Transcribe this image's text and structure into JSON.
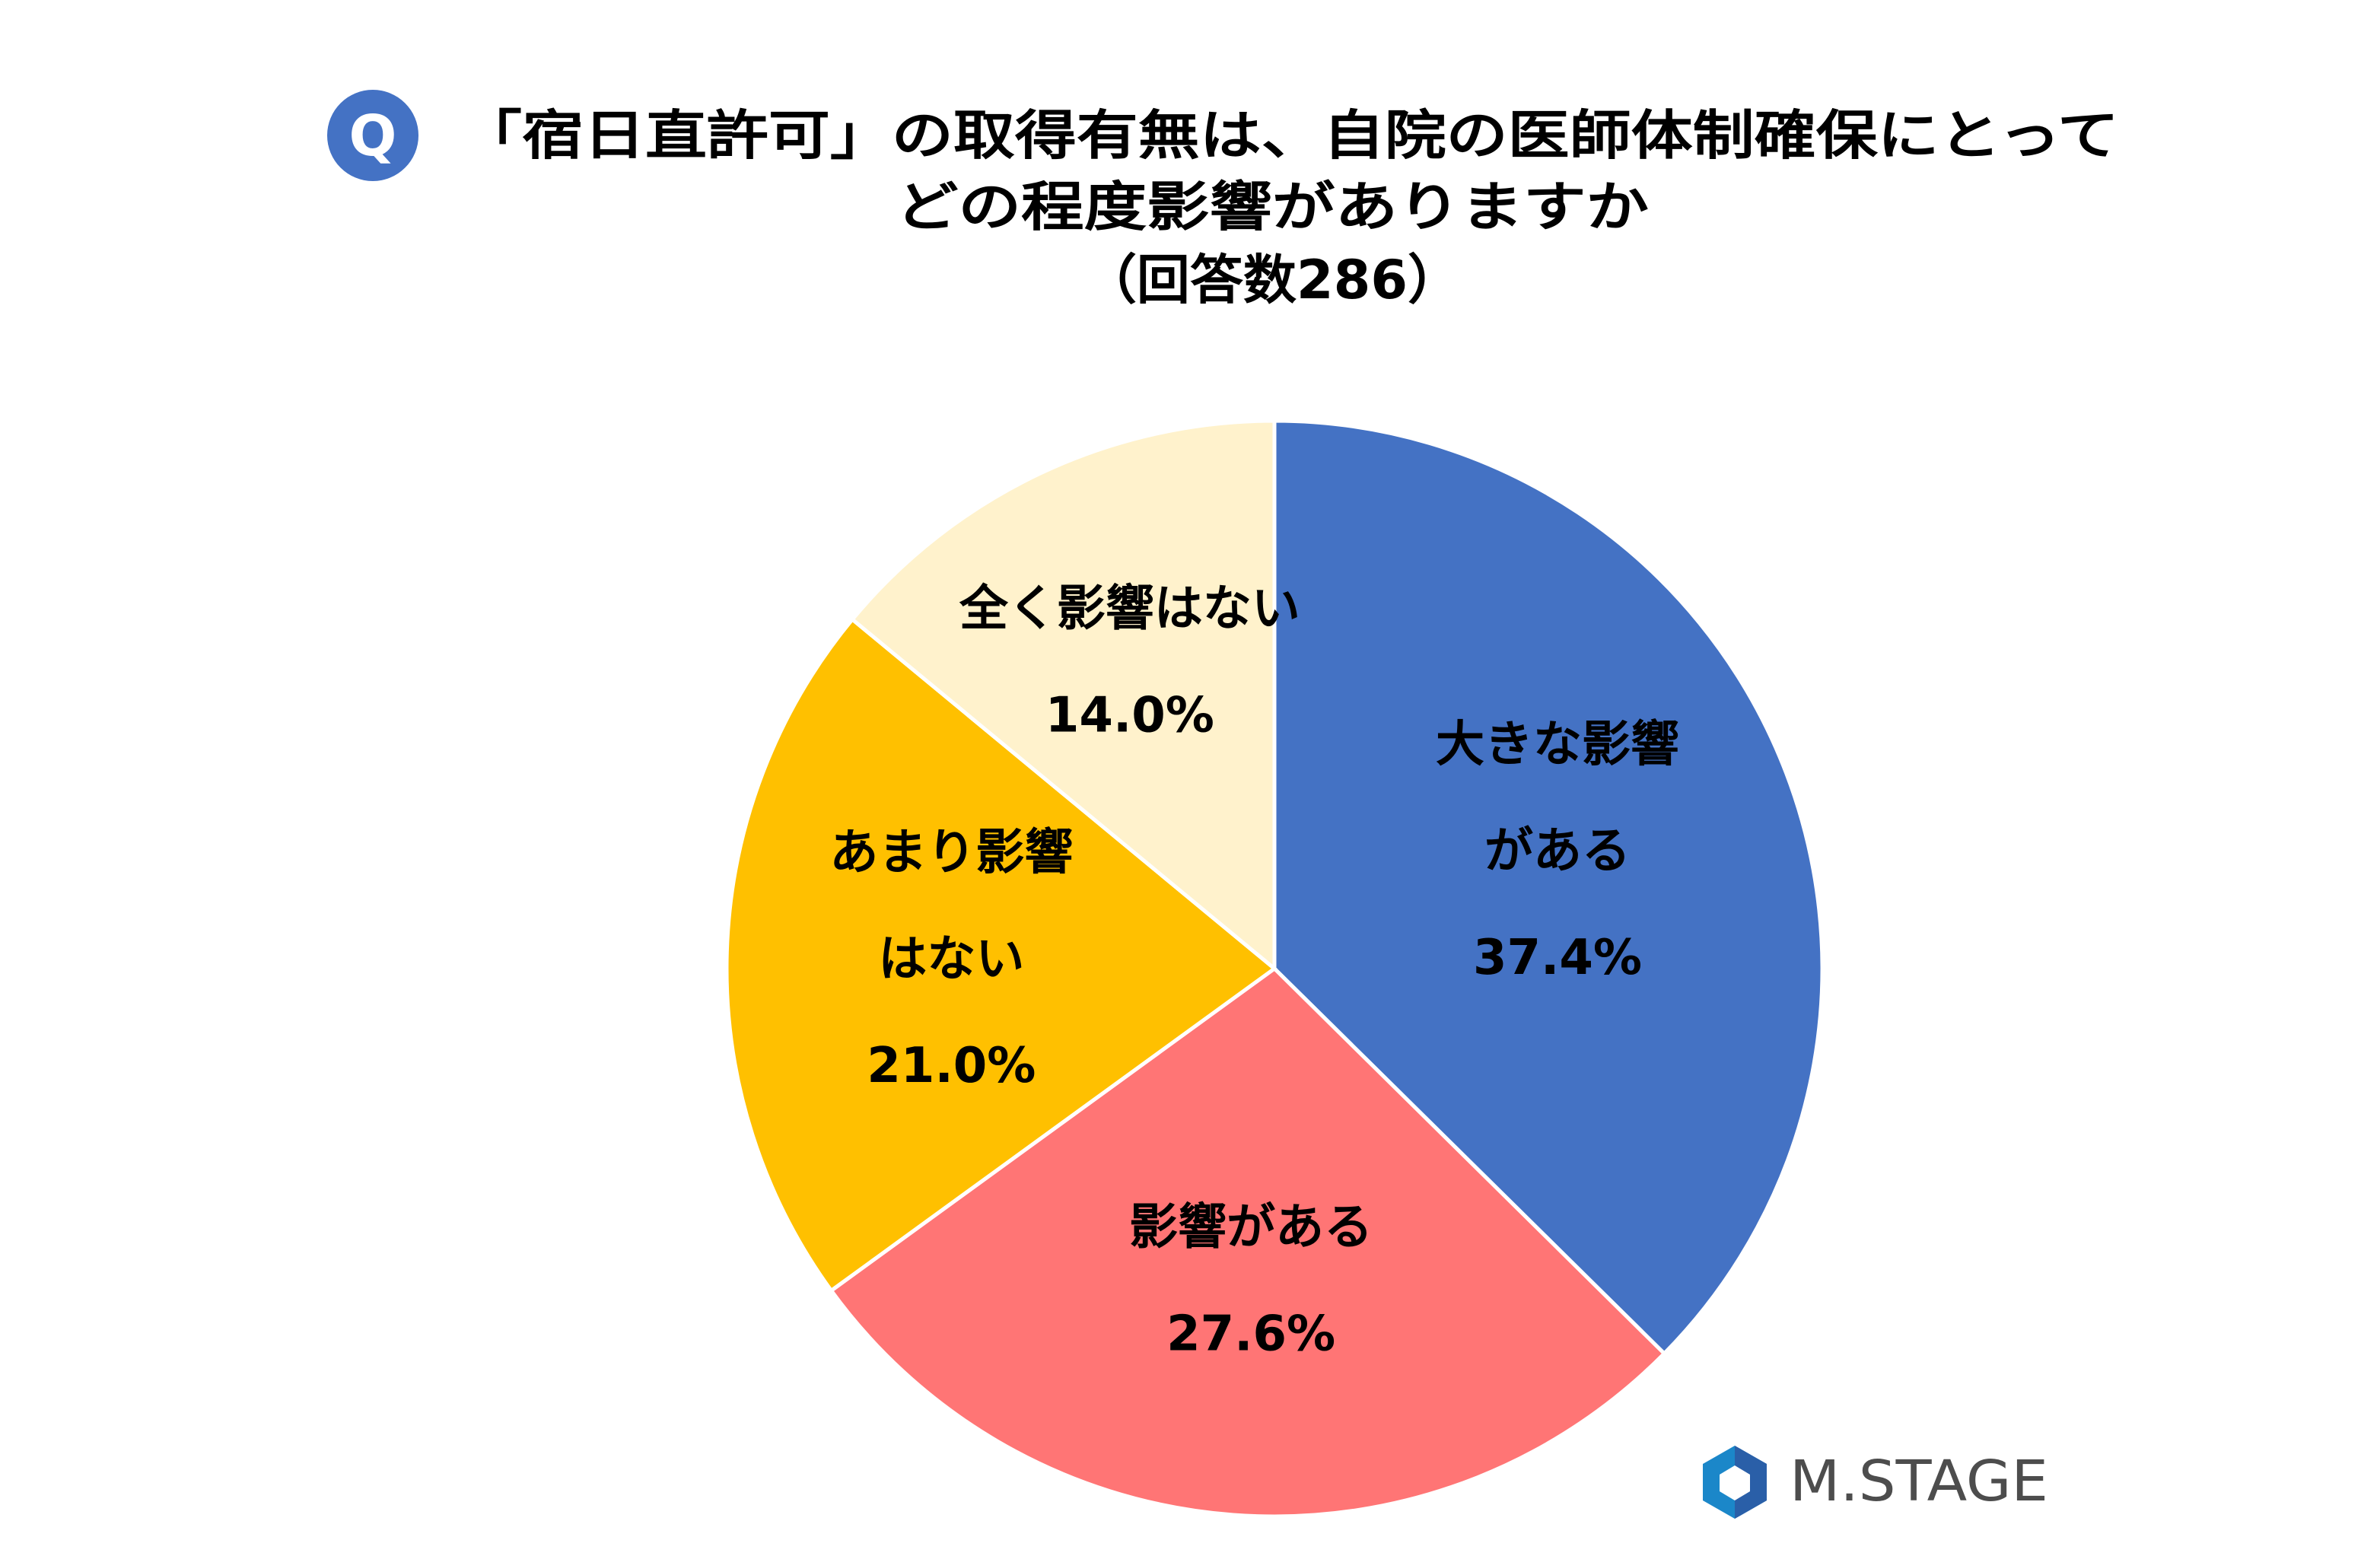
{
  "question": {
    "badge": "Q",
    "title_line1": "「宿日直許可」の取得有無は、自院の医師体制確保にとって",
    "title_line2": "どの程度影響がありますか",
    "title_line3": "（回答数286）"
  },
  "chart_data": {
    "type": "pie",
    "title": "「宿日直許可」の取得有無は、自院の医師体制確保にとって どの程度影響がありますか（回答数286）",
    "respondents": 286,
    "start": "12 o'clock",
    "direction": "clockwise",
    "slices": [
      {
        "label_lines": [
          "大きな影響",
          "がある"
        ],
        "value": 37.4,
        "value_label": "37.4%",
        "color": "#4472C4"
      },
      {
        "label_lines": [
          "影響がある"
        ],
        "value": 27.6,
        "value_label": "27.6%",
        "color": "#FF7575"
      },
      {
        "label_lines": [
          "あまり影響",
          "はない"
        ],
        "value": 21.0,
        "value_label": "21.0%",
        "color": "#FFC000"
      },
      {
        "label_lines": [
          "全く影響はない"
        ],
        "value": 14.0,
        "value_label": "14.0%",
        "color": "#FFF2CC"
      }
    ]
  },
  "brand": {
    "name": "M.STAGE",
    "icon": "hexagon-logo-icon",
    "colors": [
      "#1B87C9",
      "#2A5FA8"
    ]
  },
  "colors": {
    "badge": "#4472C4",
    "title_text": "#000000",
    "slice_border": "#ffffff"
  }
}
